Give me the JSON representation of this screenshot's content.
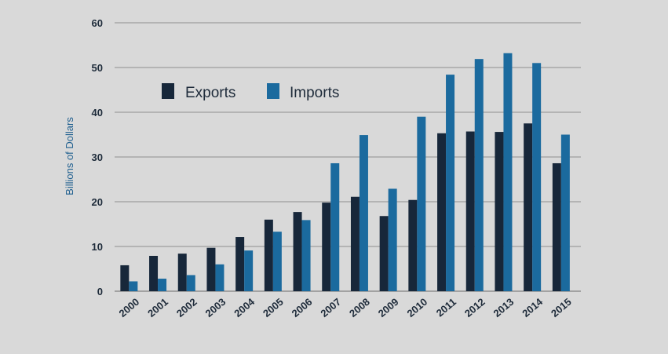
{
  "chart_data": {
    "type": "bar",
    "categories": [
      "2000",
      "2001",
      "2002",
      "2003",
      "2004",
      "2005",
      "2006",
      "2007",
      "2008",
      "2009",
      "2010",
      "2011",
      "2012",
      "2013",
      "2014",
      "2015"
    ],
    "series": [
      {
        "name": "Exports",
        "color": "#17273a",
        "values": [
          5.8,
          7.9,
          8.4,
          9.7,
          12.1,
          16.0,
          17.7,
          19.8,
          21.1,
          16.8,
          20.4,
          35.3,
          35.7,
          35.6,
          37.5,
          28.6
        ]
      },
      {
        "name": "Imports",
        "color": "#1b6a9e",
        "values": [
          2.2,
          2.8,
          3.6,
          6.0,
          9.1,
          13.3,
          15.9,
          28.6,
          34.9,
          22.9,
          39.0,
          48.4,
          51.9,
          53.2,
          51.0,
          35.0
        ]
      }
    ],
    "ylabel": "Billions of Dollars",
    "ylim": [
      0,
      60
    ],
    "yticks": [
      0,
      10,
      20,
      30,
      40,
      50,
      60
    ],
    "grid": true,
    "legend_position": "top-left"
  },
  "colors": {
    "background": "#d9d9d9",
    "gridline": "#8f8f8f",
    "axis_text": "#1e2b3a",
    "ylabel_text": "#1f5f8f"
  }
}
